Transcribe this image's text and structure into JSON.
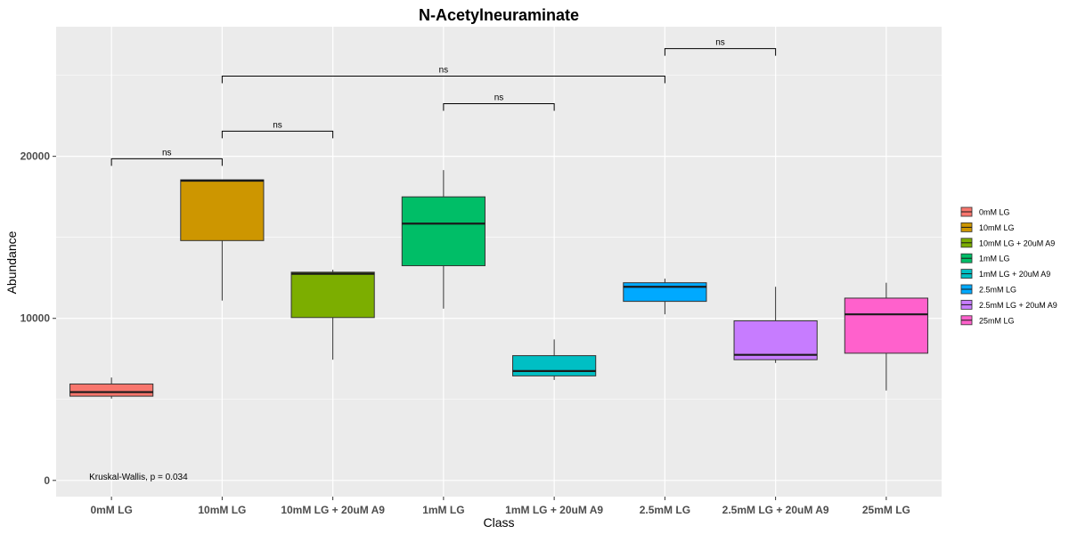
{
  "chart_data": {
    "type": "box",
    "title": "N-Acetylneuraminate",
    "xlabel": "Class",
    "ylabel": "Abundance",
    "ylim": [
      -1000,
      28000
    ],
    "yticks": [
      0,
      10000,
      20000
    ],
    "yticklabels": [
      "0",
      "10000",
      "20000"
    ],
    "grid": true,
    "legend_position": "right",
    "categories": [
      "0mM LG",
      "10mM LG",
      "10mM LG + 20uM A9",
      "1mM LG",
      "1mM LG + 20uM A9",
      "2.5mM LG",
      "2.5mM LG + 20uM A9",
      "25mM LG"
    ],
    "colors": [
      "#F8766D",
      "#CD9600",
      "#7CAE00",
      "#00BE67",
      "#00BFC4",
      "#00A9FF",
      "#C77CFF",
      "#FF61CC"
    ],
    "boxes": [
      {
        "name": "0mM LG",
        "min": 5050,
        "q1": 5200,
        "median": 5450,
        "q3": 5950,
        "max": 6350
      },
      {
        "name": "10mM LG",
        "min": 11100,
        "q1": 14800,
        "median": 18500,
        "q3": 18550,
        "max": 18550
      },
      {
        "name": "10mM LG + 20uM A9",
        "min": 7450,
        "q1": 10050,
        "median": 12750,
        "q3": 12850,
        "max": 13000
      },
      {
        "name": "1mM LG",
        "min": 10600,
        "q1": 13250,
        "median": 15850,
        "q3": 17500,
        "max": 19150
      },
      {
        "name": "1mM LG + 20uM A9",
        "min": 6200,
        "q1": 6450,
        "median": 6750,
        "q3": 7700,
        "max": 8700
      },
      {
        "name": "2.5mM LG",
        "min": 10250,
        "q1": 11050,
        "median": 11950,
        "q3": 12200,
        "max": 12450
      },
      {
        "name": "2.5mM LG + 20uM A9",
        "min": 7250,
        "q1": 7450,
        "median": 7750,
        "q3": 9850,
        "max": 11950
      },
      {
        "name": "25mM LG",
        "min": 5550,
        "q1": 7850,
        "median": 10250,
        "q3": 11250,
        "max": 12200
      }
    ],
    "legend_entries": [
      "0mM LG",
      "10mM LG",
      "10mM LG + 20uM A9",
      "1mM LG",
      "1mM LG + 20uM A9",
      "2.5mM LG",
      "2.5mM LG + 20uM A9",
      "25mM LG"
    ],
    "comparisons": [
      {
        "from": "0mM LG",
        "to": "10mM LG",
        "y": 19850,
        "label": "ns"
      },
      {
        "from": "10mM LG",
        "to": "10mM LG + 20uM A9",
        "y": 21550,
        "label": "ns"
      },
      {
        "from": "1mM LG",
        "to": "1mM LG + 20uM A9",
        "y": 23250,
        "label": "ns"
      },
      {
        "from": "10mM LG",
        "to": "2.5mM LG",
        "y": 24950,
        "label": "ns"
      },
      {
        "from": "2.5mM LG",
        "to": "2.5mM LG + 20uM A9",
        "y": 26650,
        "label": "ns"
      }
    ],
    "annotation": {
      "text": "Kruskal-Wallis, p = 0.034",
      "x": "0mM LG",
      "y": 0
    }
  }
}
